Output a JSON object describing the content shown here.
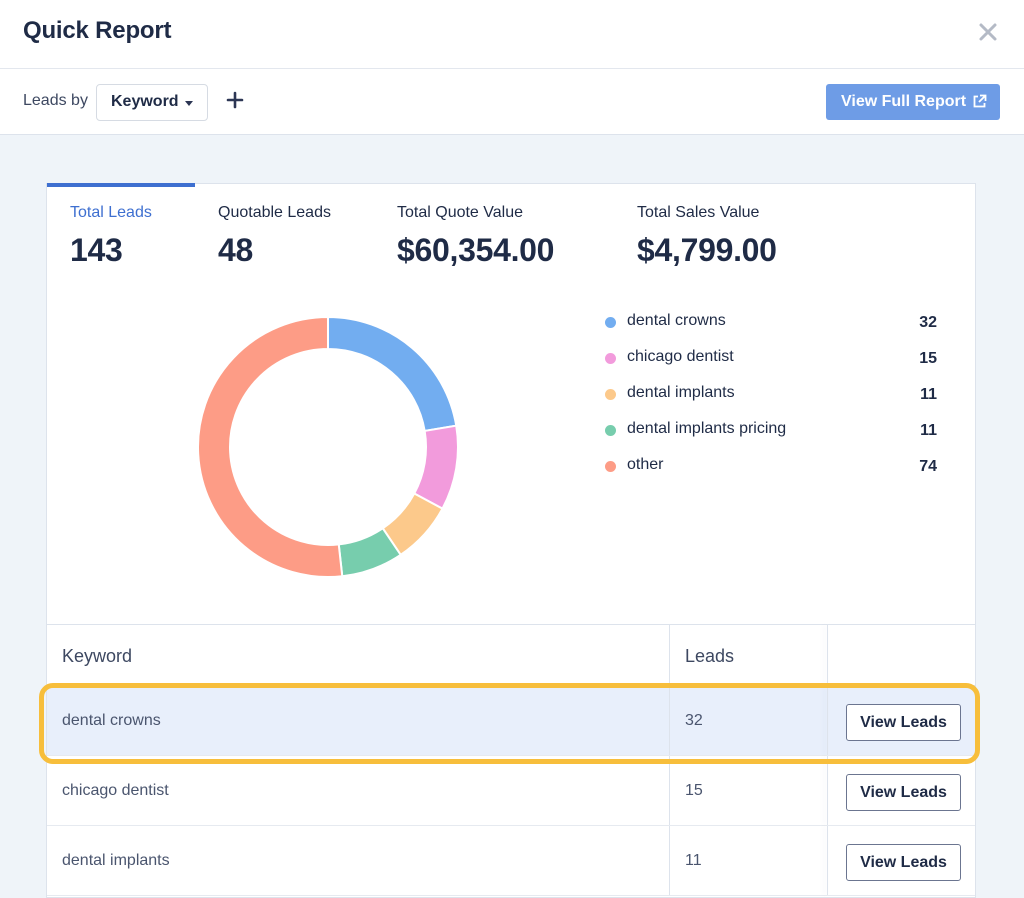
{
  "header": {
    "title": "Quick Report",
    "close_icon": "close-icon"
  },
  "toolbar": {
    "leads_by_label": "Leads by",
    "group_by_selected": "Keyword",
    "add_icon": "plus-icon",
    "full_report_label": "View Full Report",
    "full_report_icon": "external-link-icon",
    "accent_color": "#6e9ce6"
  },
  "metrics": [
    {
      "label": "Total Leads",
      "value": "143",
      "active": true
    },
    {
      "label": "Quotable Leads",
      "value": "48",
      "active": false
    },
    {
      "label": "Total Quote Value",
      "value": "$60,354.00",
      "active": false
    },
    {
      "label": "Total Sales Value",
      "value": "$4,799.00",
      "active": false
    }
  ],
  "chart_data": {
    "type": "pie",
    "variant": "donut",
    "categories": [
      "dental crowns",
      "chicago dentist",
      "dental implants",
      "dental implants pricing",
      "other"
    ],
    "values": [
      32,
      15,
      11,
      11,
      74
    ],
    "colors": [
      "#72adf0",
      "#f29bdc",
      "#fcc98b",
      "#77cdad",
      "#fd9c86"
    ],
    "total": 143,
    "legend_position": "right"
  },
  "legend": [
    {
      "label": "dental crowns",
      "count": "32",
      "color": "#72adf0"
    },
    {
      "label": "chicago dentist",
      "count": "15",
      "color": "#f29bdc"
    },
    {
      "label": "dental implants",
      "count": "11",
      "color": "#fcc98b"
    },
    {
      "label": "dental implants pricing",
      "count": "11",
      "color": "#77cdad"
    },
    {
      "label": "other",
      "count": "74",
      "color": "#fd9c86"
    }
  ],
  "table": {
    "headers": {
      "keyword": "Keyword",
      "leads": "Leads"
    },
    "rows": [
      {
        "keyword": "dental crowns",
        "leads": "32",
        "action": "View Leads",
        "highlighted": true
      },
      {
        "keyword": "chicago dentist",
        "leads": "15",
        "action": "View Leads",
        "highlighted": false
      },
      {
        "keyword": "dental implants",
        "leads": "11",
        "action": "View Leads",
        "highlighted": false
      }
    ],
    "highlight_color": "#f7be3b"
  }
}
